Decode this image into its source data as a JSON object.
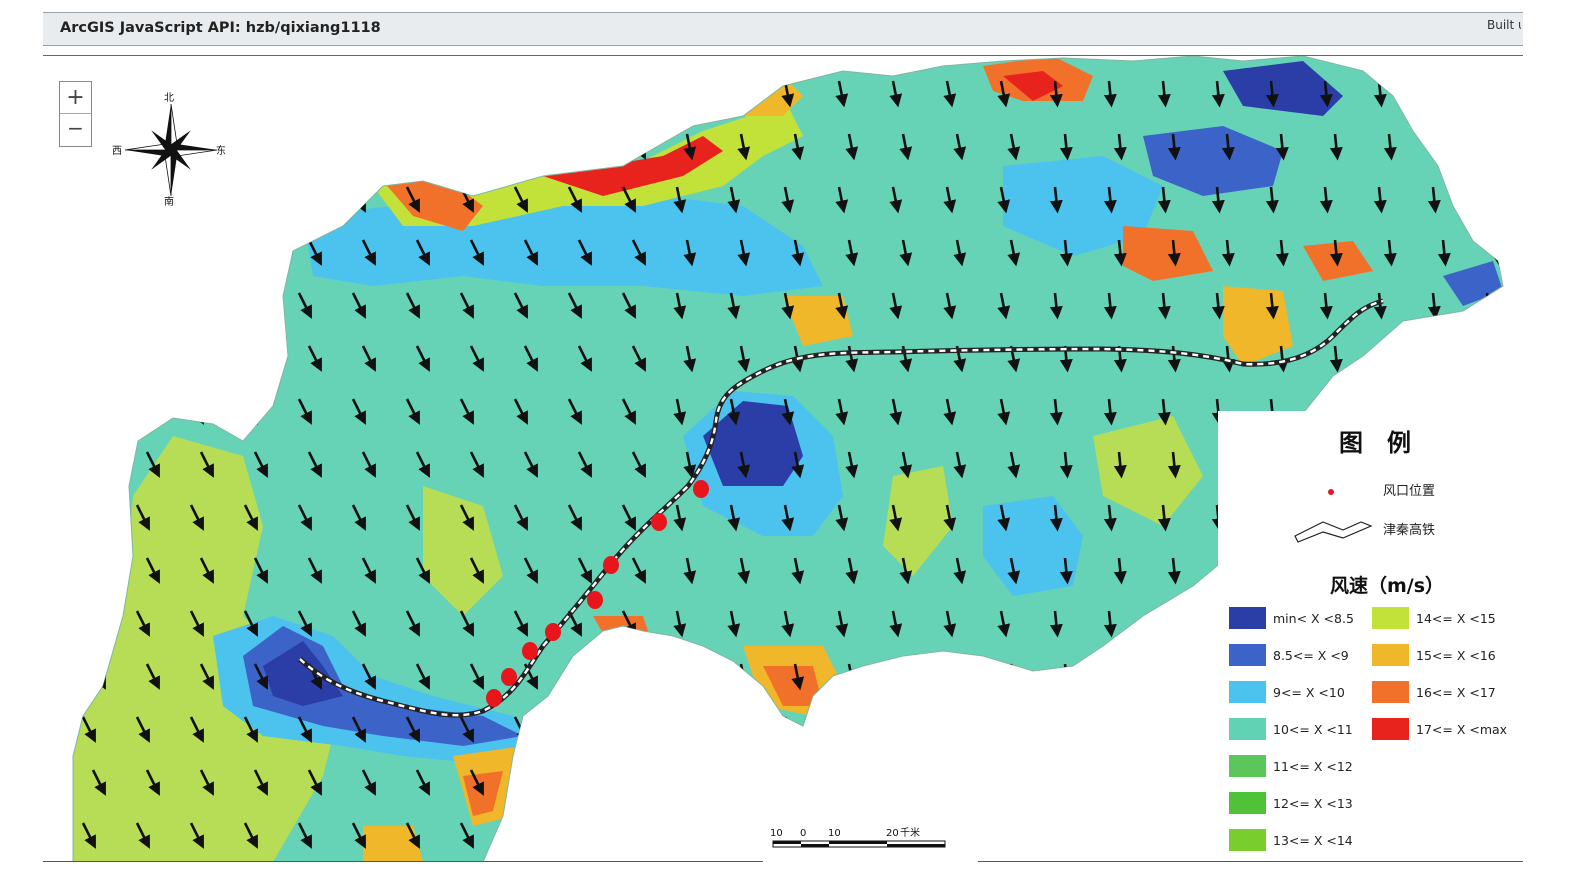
{
  "header": {
    "title": "ArcGIS JavaScript API: hzb/qixiang1118",
    "built": "Built u"
  },
  "zoom": {
    "in_label": "+",
    "out_label": "−"
  },
  "compass": {
    "north": "北",
    "south": "南",
    "east": "东",
    "west": "西"
  },
  "legend": {
    "title": "图　例",
    "point_label": "风口位置",
    "line_label": "津秦高铁",
    "speed_title": "风速（m/s）",
    "classes": [
      {
        "label": "min< X <8.5",
        "color": "#2b3da6"
      },
      {
        "label": "8.5<= X <9",
        "color": "#3c63c8"
      },
      {
        "label": "9<= X <10",
        "color": "#4cc2ee"
      },
      {
        "label": "10<= X <11",
        "color": "#62d2b5"
      },
      {
        "label": "11<= X <12",
        "color": "#5cc65a"
      },
      {
        "label": "12<= X <13",
        "color": "#4fc238"
      },
      {
        "label": "13<= X <14",
        "color": "#79cd2c"
      },
      {
        "label": "14<= X <15",
        "color": "#c2e23a"
      },
      {
        "label": "15<= X <16",
        "color": "#f0b72a"
      },
      {
        "label": "16<= X <17",
        "color": "#f2712a"
      },
      {
        "label": "17<= X <max",
        "color": "#e8231e"
      }
    ]
  },
  "scalebar": {
    "ticks": [
      "10",
      "0",
      "10",
      "20"
    ],
    "unit": "千米"
  },
  "colors": {
    "background_field": "#66d3b6",
    "low_wind": "#2b3da6",
    "high_wind": "#e8231e",
    "railway": "#ffffff",
    "wind_gap_marker": "#e8151c"
  }
}
